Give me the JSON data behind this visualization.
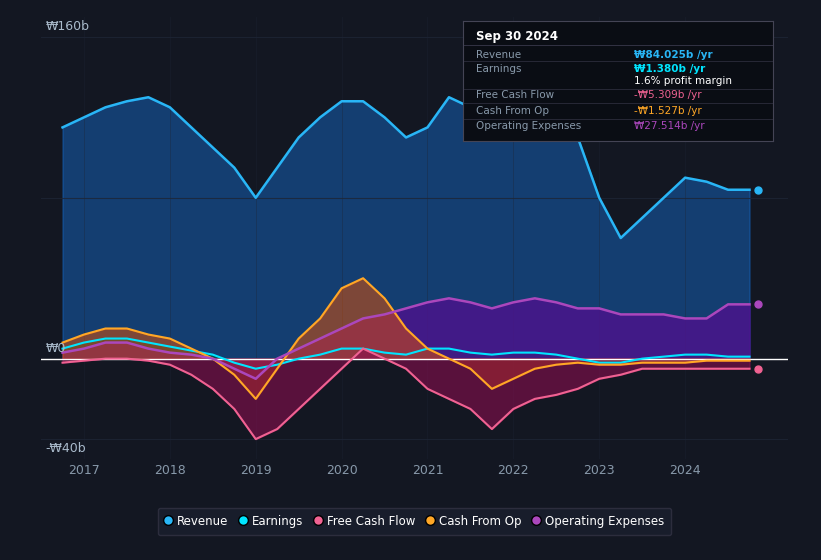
{
  "bg_color": "#131722",
  "plot_bg_color": "#131722",
  "grid_color": "#1e2535",
  "zero_line_color": "#ffffff",
  "y160_text": "₩160b",
  "y0_text": "₩0",
  "yn40_text": "-₩40b",
  "x_labels": [
    "2017",
    "2018",
    "2019",
    "2020",
    "2021",
    "2022",
    "2023",
    "2024"
  ],
  "legend_items": [
    "Revenue",
    "Earnings",
    "Free Cash Flow",
    "Cash From Op",
    "Operating Expenses"
  ],
  "legend_colors": [
    "#29b6f6",
    "#00e5ff",
    "#f06292",
    "#ffa726",
    "#ab47bc"
  ],
  "info_box": {
    "title": "Sep 30 2024",
    "rows": [
      {
        "label": "Revenue",
        "value": "₩84.025b /yr",
        "value_color": "#29b6f6"
      },
      {
        "label": "Earnings",
        "value": "₩1.380b /yr",
        "value_color": "#00e5ff"
      },
      {
        "label": "",
        "value": "1.6% profit margin",
        "value_color": "#ffffff"
      },
      {
        "label": "Free Cash Flow",
        "value": "-₩5.309b /yr",
        "value_color": "#f06292"
      },
      {
        "label": "Cash From Op",
        "value": "-₩1.527b /yr",
        "value_color": "#ffa726"
      },
      {
        "label": "Operating Expenses",
        "value": "₩27.514b /yr",
        "value_color": "#ab47bc"
      }
    ]
  },
  "x_data": [
    2016.75,
    2017.0,
    2017.25,
    2017.5,
    2017.75,
    2018.0,
    2018.25,
    2018.5,
    2018.75,
    2019.0,
    2019.25,
    2019.5,
    2019.75,
    2020.0,
    2020.25,
    2020.5,
    2020.75,
    2021.0,
    2021.25,
    2021.5,
    2021.75,
    2022.0,
    2022.25,
    2022.5,
    2022.75,
    2023.0,
    2023.25,
    2023.5,
    2023.75,
    2024.0,
    2024.25,
    2024.5,
    2024.75
  ],
  "revenue": [
    115,
    120,
    125,
    128,
    130,
    125,
    115,
    105,
    95,
    80,
    95,
    110,
    120,
    128,
    128,
    120,
    110,
    115,
    130,
    125,
    115,
    130,
    128,
    120,
    110,
    80,
    60,
    70,
    80,
    90,
    88,
    84,
    84
  ],
  "earnings": [
    5,
    8,
    10,
    10,
    8,
    6,
    4,
    2,
    -2,
    -5,
    -3,
    0,
    2,
    5,
    5,
    3,
    2,
    5,
    5,
    3,
    2,
    3,
    3,
    2,
    0,
    -2,
    -2,
    0,
    1,
    2,
    2,
    1,
    1
  ],
  "free_cash_flow": [
    -2,
    -1,
    0,
    0,
    -1,
    -3,
    -8,
    -15,
    -25,
    -40,
    -35,
    -25,
    -15,
    -5,
    5,
    0,
    -5,
    -15,
    -20,
    -25,
    -35,
    -25,
    -20,
    -18,
    -15,
    -10,
    -8,
    -5,
    -5,
    -5,
    -5,
    -5,
    -5
  ],
  "cash_from_op": [
    8,
    12,
    15,
    15,
    12,
    10,
    5,
    0,
    -8,
    -20,
    -5,
    10,
    20,
    35,
    40,
    30,
    15,
    5,
    0,
    -5,
    -15,
    -10,
    -5,
    -3,
    -2,
    -3,
    -3,
    -2,
    -2,
    -2,
    -1,
    -1,
    -1
  ],
  "operating_expenses": [
    3,
    5,
    8,
    8,
    5,
    3,
    2,
    0,
    -5,
    -10,
    0,
    5,
    10,
    15,
    20,
    22,
    25,
    28,
    30,
    28,
    25,
    28,
    30,
    28,
    25,
    25,
    22,
    22,
    22,
    20,
    20,
    27,
    27
  ],
  "ylim": [
    -50,
    170
  ],
  "xlim": [
    2016.5,
    2025.2
  ],
  "revenue_color": "#29b6f6",
  "revenue_fill": "#1565c0",
  "earnings_color": "#00e5ff",
  "earnings_fill": "#004d40",
  "fcf_color": "#f06292",
  "fcf_fill": "#880e4f",
  "cashop_color": "#ffa726",
  "cashop_fill": "#e65100",
  "opex_color": "#ab47bc",
  "opex_fill": "#4a148c"
}
